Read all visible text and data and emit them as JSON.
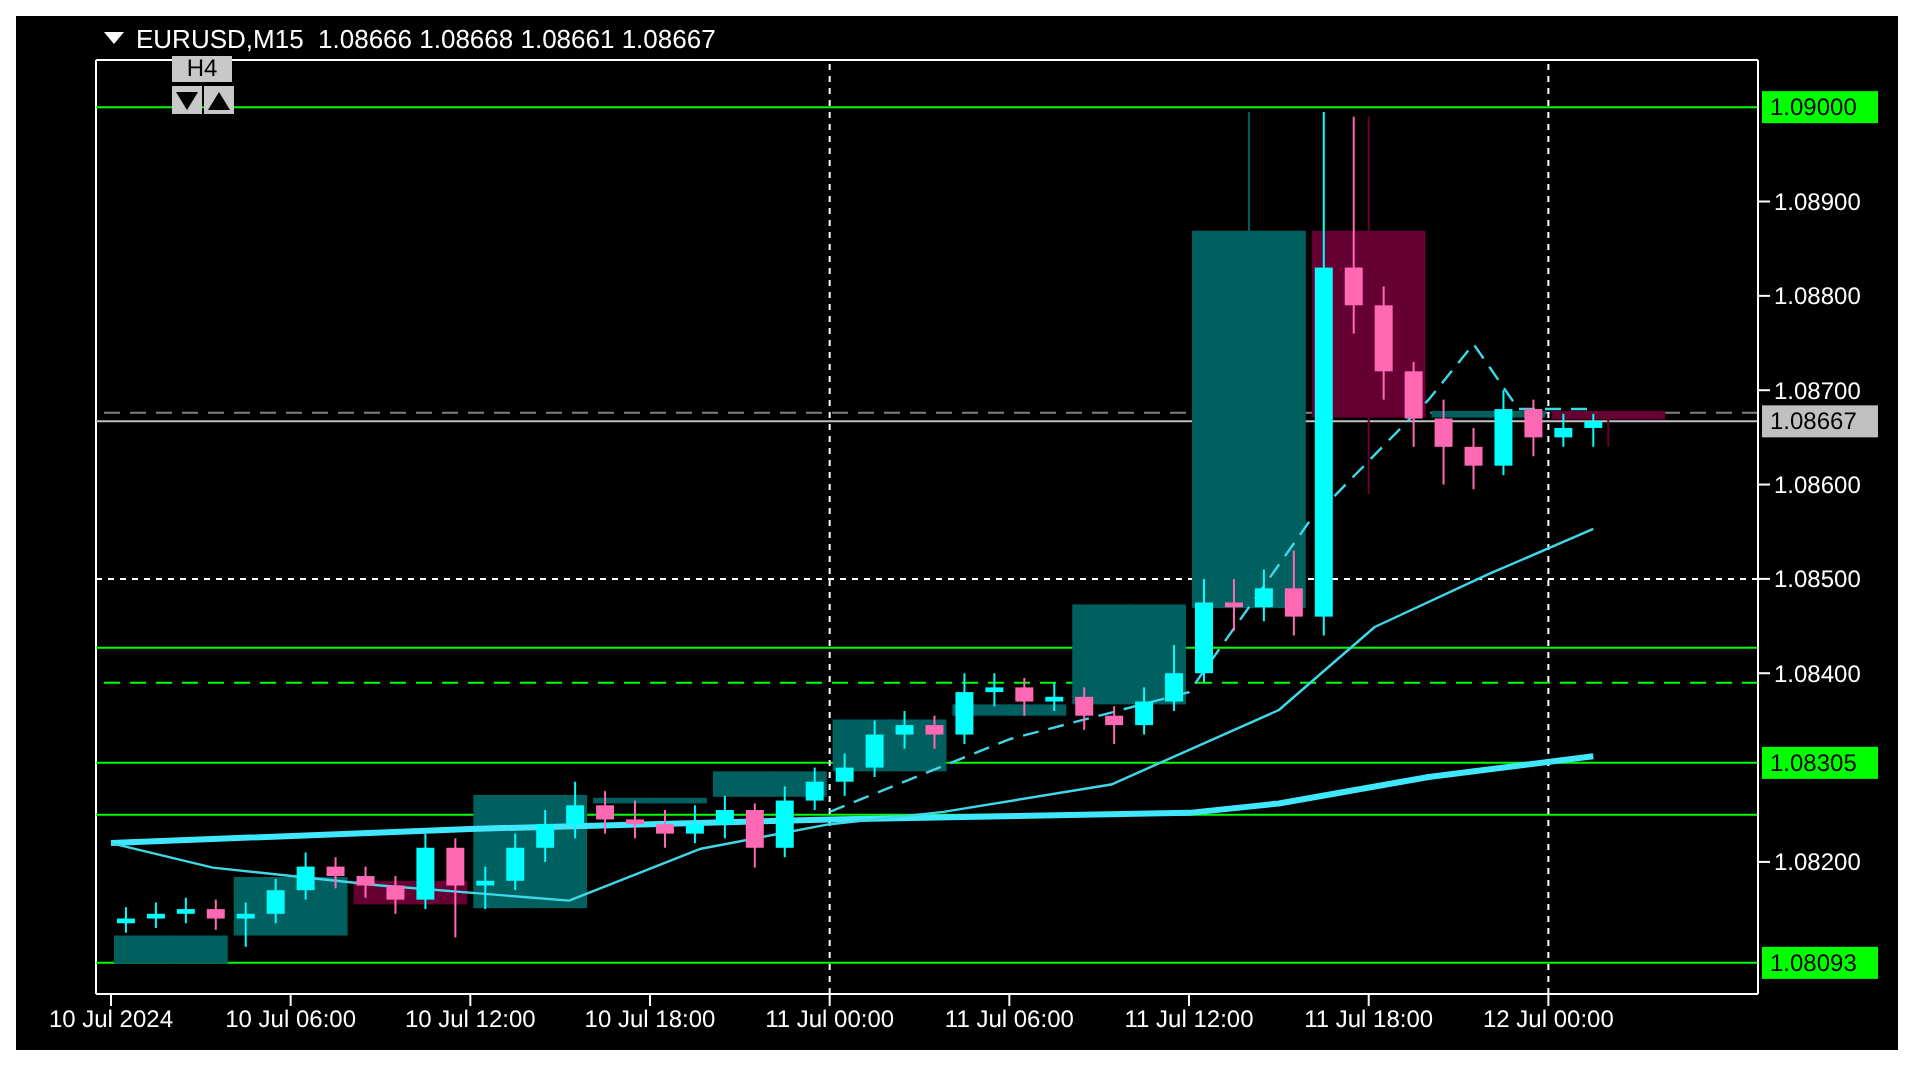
{
  "chart_data": {
    "type": "candlestick",
    "title": "EURUSD,M15  1.08666 1.08668 1.08661 1.08667",
    "annotations": [
      "H4"
    ],
    "xlim": [
      "2024-07-09T23:30",
      "2024-07-12T07:00"
    ],
    "xticks": [
      {
        "value": "2024-07-10T00:00",
        "label": "10 Jul 2024"
      },
      {
        "value": "2024-07-10T06:00",
        "label": "10 Jul 06:00"
      },
      {
        "value": "2024-07-10T12:00",
        "label": "10 Jul 12:00"
      },
      {
        "value": "2024-07-10T18:00",
        "label": "10 Jul 18:00"
      },
      {
        "value": "2024-07-11T00:00",
        "label": "11 Jul 00:00"
      },
      {
        "value": "2024-07-11T06:00",
        "label": "11 Jul 06:00"
      },
      {
        "value": "2024-07-11T12:00",
        "label": "11 Jul 12:00"
      },
      {
        "value": "2024-07-11T18:00",
        "label": "11 Jul 18:00"
      },
      {
        "value": "2024-07-12T00:00",
        "label": "12 Jul 00:00"
      }
    ],
    "ylim": [
      1.0806,
      1.0905
    ],
    "yticks": [
      {
        "value": 1.082,
        "label": "1.08200"
      },
      {
        "value": 1.084,
        "label": "1.08400"
      },
      {
        "value": 1.085,
        "label": "1.08500"
      },
      {
        "value": 1.086,
        "label": "1.08600"
      },
      {
        "value": 1.087,
        "label": "1.08700"
      },
      {
        "value": 1.088,
        "label": "1.08800"
      },
      {
        "value": 1.089,
        "label": "1.08900"
      }
    ],
    "series": [
      {
        "x": [
          "2024-07-10T02:00",
          "2024-07-10T06:00",
          "2024-07-10T10:00",
          "2024-07-10T14:00",
          "2024-07-10T18:00",
          "2024-07-10T22:00",
          "2024-07-11T02:00",
          "2024-07-11T06:00",
          "2024-07-11T10:00",
          "2024-07-11T14:00",
          "2024-07-11T18:00",
          "2024-07-11T22:00",
          "2024-07-12T02:00"
        ],
        "colors": [
          "#005f5f",
          "#005f5f",
          "#660033",
          "#005f5f",
          "#005f5f",
          "#005f5f",
          "#005f5f",
          "#005f5f",
          "#005f5f",
          "#005f5f",
          "#660033",
          "#005f5f",
          "#660033"
        ],
        "ohlc": [
          [
            1.08092,
            1.08122,
            1.08092,
            1.08122
          ],
          [
            1.08122,
            1.08184,
            1.08122,
            1.08184
          ],
          [
            1.0818,
            1.0818,
            1.08155,
            1.08155
          ],
          [
            1.08151,
            1.08271,
            1.08151,
            1.08271
          ],
          [
            1.08262,
            1.08268,
            1.08262,
            1.08268
          ],
          [
            1.08269,
            1.08296,
            1.08269,
            1.08296
          ],
          [
            1.08296,
            1.08351,
            1.08296,
            1.08351
          ],
          [
            1.08355,
            1.08367,
            1.08355,
            1.08367
          ],
          [
            1.08367,
            1.08473,
            1.08367,
            1.08473
          ],
          [
            1.08469,
            1.08995,
            1.08469,
            1.08869
          ],
          [
            1.08869,
            1.0899,
            1.0859,
            1.08671
          ],
          [
            1.08671,
            1.08678,
            1.08671,
            1.08678
          ],
          [
            1.08678,
            1.08678,
            1.0864,
            1.08669
          ]
        ]
      },
      {
        "x": [
          "2024-07-10T00:30",
          "2024-07-10T01:30",
          "2024-07-10T02:30",
          "2024-07-10T03:30",
          "2024-07-10T04:30",
          "2024-07-10T05:30",
          "2024-07-10T06:30",
          "2024-07-10T07:30",
          "2024-07-10T08:30",
          "2024-07-10T09:30",
          "2024-07-10T10:30",
          "2024-07-10T11:30",
          "2024-07-10T12:30",
          "2024-07-10T13:30",
          "2024-07-10T14:30",
          "2024-07-10T15:30",
          "2024-07-10T16:30",
          "2024-07-10T17:30",
          "2024-07-10T18:30",
          "2024-07-10T19:30",
          "2024-07-10T20:30",
          "2024-07-10T21:30",
          "2024-07-10T22:30",
          "2024-07-10T23:30",
          "2024-07-11T00:30",
          "2024-07-11T01:30",
          "2024-07-11T02:30",
          "2024-07-11T03:30",
          "2024-07-11T04:30",
          "2024-07-11T05:30",
          "2024-07-11T06:30",
          "2024-07-11T07:30",
          "2024-07-11T08:30",
          "2024-07-11T09:30",
          "2024-07-11T10:30",
          "2024-07-11T11:30",
          "2024-07-11T12:30",
          "2024-07-11T13:30",
          "2024-07-11T14:30",
          "2024-07-11T15:30",
          "2024-07-11T16:30",
          "2024-07-11T17:30",
          "2024-07-11T18:30",
          "2024-07-11T19:30",
          "2024-07-11T20:30",
          "2024-07-11T21:30",
          "2024-07-11T22:30",
          "2024-07-11T23:30",
          "2024-07-12T00:30",
          "2024-07-12T01:30"
        ],
        "colors": [
          "#00ffff",
          "#00ffff",
          "#00ffff",
          "#ff69b4",
          "#00ffff",
          "#00ffff",
          "#00ffff",
          "#ff69b4",
          "#ff69b4",
          "#ff69b4",
          "#00ffff",
          "#ff69b4",
          "#00ffff",
          "#00ffff",
          "#00ffff",
          "#00ffff",
          "#ff69b4",
          "#ff69b4",
          "#ff69b4",
          "#00ffff",
          "#00ffff",
          "#ff69b4",
          "#00ffff",
          "#00ffff",
          "#00ffff",
          "#00ffff",
          "#00ffff",
          "#ff69b4",
          "#00ffff",
          "#00ffff",
          "#ff69b4",
          "#00ffff",
          "#ff69b4",
          "#ff69b4",
          "#00ffff",
          "#00ffff",
          "#00ffff",
          "#ff69b4",
          "#00ffff",
          "#ff69b4",
          "#00ffff",
          "#ff69b4",
          "#ff69b4",
          "#ff69b4",
          "#ff69b4",
          "#ff69b4",
          "#00ffff",
          "#ff69b4",
          "#00ffff",
          "#00ffff"
        ],
        "ohlc": [
          [
            1.08135,
            1.08152,
            1.08125,
            1.0814
          ],
          [
            1.0814,
            1.08157,
            1.0813,
            1.08145
          ],
          [
            1.08145,
            1.08162,
            1.08135,
            1.0815
          ],
          [
            1.0815,
            1.0816,
            1.08128,
            1.0814
          ],
          [
            1.0814,
            1.08157,
            1.0811,
            1.08145
          ],
          [
            1.08145,
            1.08182,
            1.08135,
            1.0817
          ],
          [
            1.0817,
            1.0821,
            1.0816,
            1.08195
          ],
          [
            1.08195,
            1.08205,
            1.08172,
            1.08185
          ],
          [
            1.08185,
            1.08195,
            1.08162,
            1.08175
          ],
          [
            1.08175,
            1.08185,
            1.08145,
            1.0816
          ],
          [
            1.0816,
            1.0823,
            1.0815,
            1.08215
          ],
          [
            1.08215,
            1.08225,
            1.0812,
            1.08175
          ],
          [
            1.08175,
            1.08195,
            1.0815,
            1.0818
          ],
          [
            1.0818,
            1.0823,
            1.0817,
            1.08215
          ],
          [
            1.08215,
            1.08255,
            1.082,
            1.0824
          ],
          [
            1.0824,
            1.08285,
            1.08225,
            1.0826
          ],
          [
            1.0826,
            1.08275,
            1.0823,
            1.08245
          ],
          [
            1.08245,
            1.08265,
            1.08225,
            1.0824
          ],
          [
            1.0824,
            1.08255,
            1.08215,
            1.0823
          ],
          [
            1.0823,
            1.0826,
            1.0822,
            1.0824
          ],
          [
            1.0824,
            1.0827,
            1.08225,
            1.08255
          ],
          [
            1.08255,
            1.08262,
            1.08194,
            1.08215
          ],
          [
            1.08215,
            1.0828,
            1.08205,
            1.08265
          ],
          [
            1.08265,
            1.083,
            1.08255,
            1.08285
          ],
          [
            1.08285,
            1.08315,
            1.0827,
            1.083
          ],
          [
            1.083,
            1.0835,
            1.0829,
            1.08335
          ],
          [
            1.08335,
            1.0836,
            1.0832,
            1.08345
          ],
          [
            1.08345,
            1.08355,
            1.0832,
            1.08335
          ],
          [
            1.08335,
            1.084,
            1.08325,
            1.0838
          ],
          [
            1.0838,
            1.084,
            1.08365,
            1.08385
          ],
          [
            1.08385,
            1.08395,
            1.08355,
            1.0837
          ],
          [
            1.0837,
            1.0839,
            1.0836,
            1.08375
          ],
          [
            1.08375,
            1.08385,
            1.0834,
            1.08355
          ],
          [
            1.08355,
            1.08365,
            1.08325,
            1.08345
          ],
          [
            1.08345,
            1.08385,
            1.08335,
            1.0837
          ],
          [
            1.0837,
            1.0843,
            1.0836,
            1.084
          ],
          [
            1.084,
            1.085,
            1.0839,
            1.08475
          ],
          [
            1.08475,
            1.085,
            1.08445,
            1.0847
          ],
          [
            1.0847,
            1.0851,
            1.08455,
            1.0849
          ],
          [
            1.0849,
            1.0853,
            1.0844,
            1.0846
          ],
          [
            1.0846,
            1.08995,
            1.0844,
            1.0883
          ],
          [
            1.0883,
            1.0899,
            1.0876,
            1.0879
          ],
          [
            1.0879,
            1.0881,
            1.0869,
            1.0872
          ],
          [
            1.0872,
            1.0873,
            1.0864,
            1.0867
          ],
          [
            1.0867,
            1.0869,
            1.086,
            1.0864
          ],
          [
            1.0864,
            1.0866,
            1.08595,
            1.0862
          ],
          [
            1.0862,
            1.087,
            1.0861,
            1.0868
          ],
          [
            1.0868,
            1.0869,
            1.0863,
            1.0865
          ],
          [
            1.0865,
            1.08675,
            1.0864,
            1.0866
          ],
          [
            1.0866,
            1.08675,
            1.0864,
            1.08667
          ]
        ]
      },
      {
        "type": "line",
        "color": "#40e8ff",
        "x": [
          "2024-07-10T00:00",
          "2024-07-10T12:00",
          "2024-07-11T00:00",
          "2024-07-11T12:00",
          "2024-07-11T15:00",
          "2024-07-11T20:00",
          "2024-07-12T01:30"
        ],
        "values": [
          1.0822,
          1.08235,
          1.08245,
          1.08252,
          1.08262,
          1.0829,
          1.08312
        ]
      },
      {
        "type": "line",
        "color": "#3fd8e8",
        "x": [
          "2024-07-10T00:00",
          "2024-07-10T03:24",
          "2024-07-10T09:00",
          "2024-07-10T15:18",
          "2024-07-10T19:42",
          "2024-07-11T00:00",
          "2024-07-11T03:48",
          "2024-07-11T09:24",
          "2024-07-11T15:00",
          "2024-07-11T18:12",
          "2024-07-11T22:00",
          "2024-07-12T01:30"
        ],
        "values": [
          1.0822,
          1.08194,
          1.08175,
          1.08159,
          1.08214,
          1.0824,
          1.08253,
          1.08282,
          1.08361,
          1.08449,
          1.08505,
          1.08553
        ]
      },
      {
        "type": "line",
        "color": "#3fd8e8",
        "line_style": "dashed",
        "x": [
          "2024-07-11T00:00",
          "2024-07-11T06:00",
          "2024-07-11T12:00",
          "2024-07-11T16:00",
          "2024-07-11T20:00",
          "2024-07-11T21:30",
          "2024-07-11T23:00",
          "2024-07-12T01:30"
        ],
        "values": [
          1.08253,
          1.0833,
          1.0838,
          1.0856,
          1.0869,
          1.08749,
          1.0868,
          1.0868
        ]
      }
    ],
    "ref_lines": [
      {
        "axis": "y",
        "value": 1.09,
        "label": "1.09000",
        "color": "#00ff00"
      },
      {
        "axis": "y",
        "value": 1.08427,
        "label": null,
        "color": "#00ff00"
      },
      {
        "axis": "y",
        "value": 1.0839,
        "label": null,
        "color": "#00ff00",
        "line_style": "dashed"
      },
      {
        "axis": "y",
        "value": 1.08305,
        "label": "1.08305",
        "color": "#00ff00"
      },
      {
        "axis": "y",
        "value": 1.0825,
        "label": null,
        "color": "#00ff00"
      },
      {
        "axis": "y",
        "value": 1.08093,
        "label": "1.08093",
        "color": "#00ff00"
      },
      {
        "axis": "y",
        "value": 1.08676,
        "label": null,
        "color": "#808080",
        "line_style": "dashed"
      },
      {
        "axis": "y",
        "value": 1.085,
        "label": null,
        "color": "#ffffff",
        "line_style": "dotted"
      },
      {
        "axis": "y",
        "value": 1.08667,
        "label": "1.08667",
        "color": "#c0c0c0"
      },
      {
        "axis": "x",
        "value": "2024-07-11T00:00",
        "label": null,
        "color": "#ffffff",
        "line_style": "dotted"
      },
      {
        "axis": "x",
        "value": "2024-07-12T00:00",
        "label": null,
        "color": "#ffffff",
        "line_style": "dotted"
      }
    ]
  }
}
